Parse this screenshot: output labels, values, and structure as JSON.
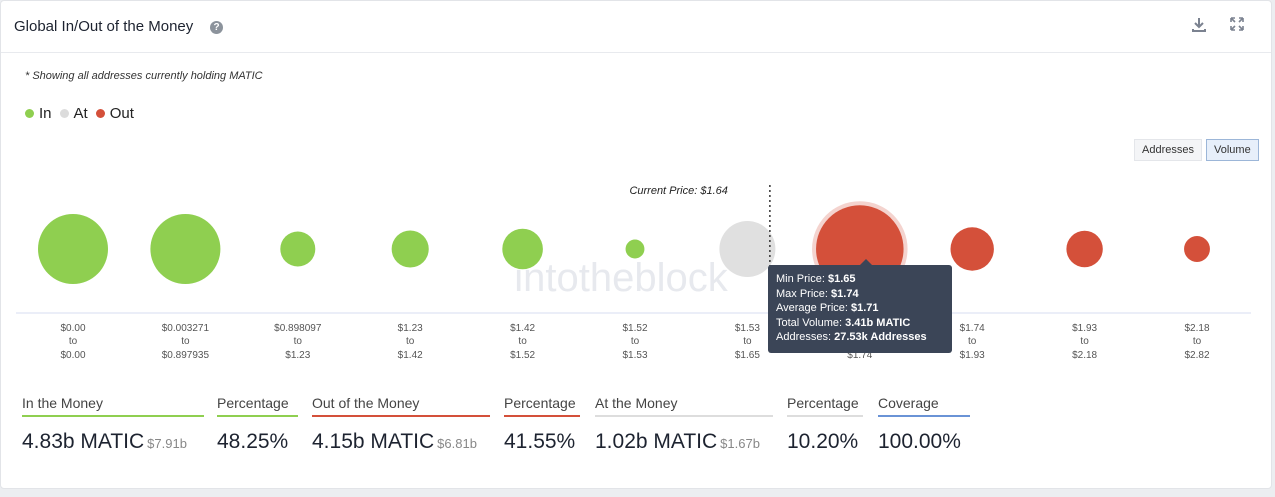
{
  "header": {
    "title": "Global In/Out of the Money"
  },
  "note": "* Showing all addresses currently holding MATIC",
  "legend": [
    {
      "label": "In",
      "color": "#8fcf50"
    },
    {
      "label": "At",
      "color": "#dcdcdc"
    },
    {
      "label": "Out",
      "color": "#d4503a"
    }
  ],
  "toggles": {
    "addresses": "Addresses",
    "volume": "Volume"
  },
  "tooltip": {
    "min_label": "Min Price:",
    "min": "$1.65",
    "max_label": "Max Price:",
    "max": "$1.74",
    "avg_label": "Average Price:",
    "avg": "$1.71",
    "vol_label": "Total Volume:",
    "vol": "3.41b MATIC",
    "addr_label": "Addresses:",
    "addr": "27.53k Addresses"
  },
  "chart_data": {
    "type": "scatter",
    "current_price_label": "Current Price: $1.64",
    "watermark": "intotheblock",
    "colors": {
      "in": "#8fcf50",
      "at": "#e0e0e0",
      "out": "#d4503a"
    },
    "bins": [
      {
        "from": "$0.00",
        "to": "$0.00",
        "status": "in",
        "size": 1.0
      },
      {
        "from": "$0.003271",
        "to": "$0.897935",
        "status": "in",
        "size": 1.0
      },
      {
        "from": "$0.898097",
        "to": "$1.23",
        "status": "in",
        "size": 0.5
      },
      {
        "from": "$1.23",
        "to": "$1.42",
        "status": "in",
        "size": 0.53
      },
      {
        "from": "$1.42",
        "to": "$1.52",
        "status": "in",
        "size": 0.58
      },
      {
        "from": "$1.52",
        "to": "$1.53",
        "status": "in",
        "size": 0.27
      },
      {
        "from": "$1.53",
        "to": "$1.65",
        "status": "at",
        "size": 0.8
      },
      {
        "from": "$1.65",
        "to": "$1.74",
        "status": "out",
        "size": 1.25
      },
      {
        "from": "$1.74",
        "to": "$1.93",
        "status": "out",
        "size": 0.62
      },
      {
        "from": "$1.93",
        "to": "$2.18",
        "status": "out",
        "size": 0.52
      },
      {
        "from": "$2.18",
        "to": "$2.82",
        "status": "out",
        "size": 0.37
      }
    ]
  },
  "stats": [
    {
      "label": "In the Money",
      "value": "4.83b MATIC",
      "sub": "$7.91b",
      "color": "#8fcf50"
    },
    {
      "label": "Percentage",
      "value": "48.25%",
      "sub": "",
      "color": "#8fcf50"
    },
    {
      "label": "Out of the Money",
      "value": "4.15b MATIC",
      "sub": "$6.81b",
      "color": "#d4503a"
    },
    {
      "label": "Percentage",
      "value": "41.55%",
      "sub": "",
      "color": "#d4503a"
    },
    {
      "label": "At the Money",
      "value": "1.02b MATIC",
      "sub": "$1.67b",
      "color": "#dddddd"
    },
    {
      "label": "Percentage",
      "value": "10.20%",
      "sub": "",
      "color": "#dddddd"
    },
    {
      "label": "Coverage",
      "value": "100.00%",
      "sub": "",
      "color": "#6a93d6"
    }
  ]
}
